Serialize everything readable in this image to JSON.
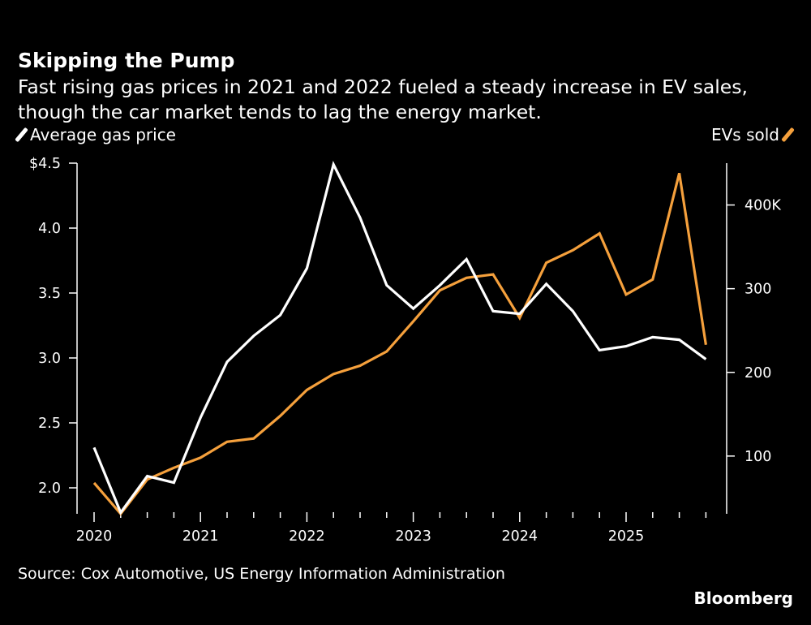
{
  "title": "Skipping the Pump",
  "subtitle": "Fast rising gas prices in 2021 and 2022 fueled a steady increase in EV sales, though the car market tends to lag the energy market.",
  "source": "Source: Cox Automotive, US Energy Information Administration",
  "brand": "Bloomberg",
  "colors": {
    "gas": "#ffffff",
    "ev": "#f5a03c",
    "background": "#000000"
  },
  "chart_data": {
    "type": "line",
    "x": [
      "2020Q1",
      "2020Q2",
      "2020Q3",
      "2020Q4",
      "2021Q1",
      "2021Q2",
      "2021Q3",
      "2021Q4",
      "2022Q1",
      "2022Q2",
      "2022Q3",
      "2022Q4",
      "2023Q1",
      "2023Q2",
      "2023Q3",
      "2023Q4",
      "2024Q1",
      "2024Q2",
      "2024Q3",
      "2024Q4",
      "2025Q1",
      "2025Q2",
      "2025Q3",
      "2025Q4"
    ],
    "x_tick_labels": [
      "2020",
      "2021",
      "2022",
      "2023",
      "2024",
      "2025"
    ],
    "series": [
      {
        "name": "Average gas price",
        "axis": "left",
        "color": "#ffffff",
        "values": [
          2.31,
          1.81,
          2.09,
          2.04,
          2.54,
          2.97,
          3.17,
          3.33,
          3.69,
          4.49,
          4.08,
          3.56,
          3.38,
          3.56,
          3.76,
          3.36,
          3.34,
          3.57,
          3.36,
          3.06,
          3.09,
          3.16,
          3.14,
          2.99
        ]
      },
      {
        "name": "EVs sold",
        "axis": "right",
        "color": "#f5a03c",
        "unit": "thousands",
        "values": [
          68,
          31,
          72,
          86,
          98,
          117,
          121,
          148,
          179,
          198,
          208,
          225,
          261,
          298,
          313,
          317,
          265,
          331,
          346,
          366,
          293,
          311,
          438,
          233
        ]
      }
    ],
    "left_axis": {
      "ticks": [
        2.0,
        2.5,
        3.0,
        3.5,
        4.0,
        4.5
      ],
      "tick_labels": [
        "2.0",
        "2.5",
        "3.0",
        "3.5",
        "4.0",
        "$4.5"
      ],
      "ylim": [
        1.8,
        4.5
      ]
    },
    "right_axis": {
      "ticks": [
        100,
        200,
        300,
        400
      ],
      "tick_labels": [
        "100",
        "200",
        "300",
        "400K"
      ],
      "ylim": [
        31,
        450
      ]
    },
    "grid": false,
    "legend_placement": "top"
  }
}
